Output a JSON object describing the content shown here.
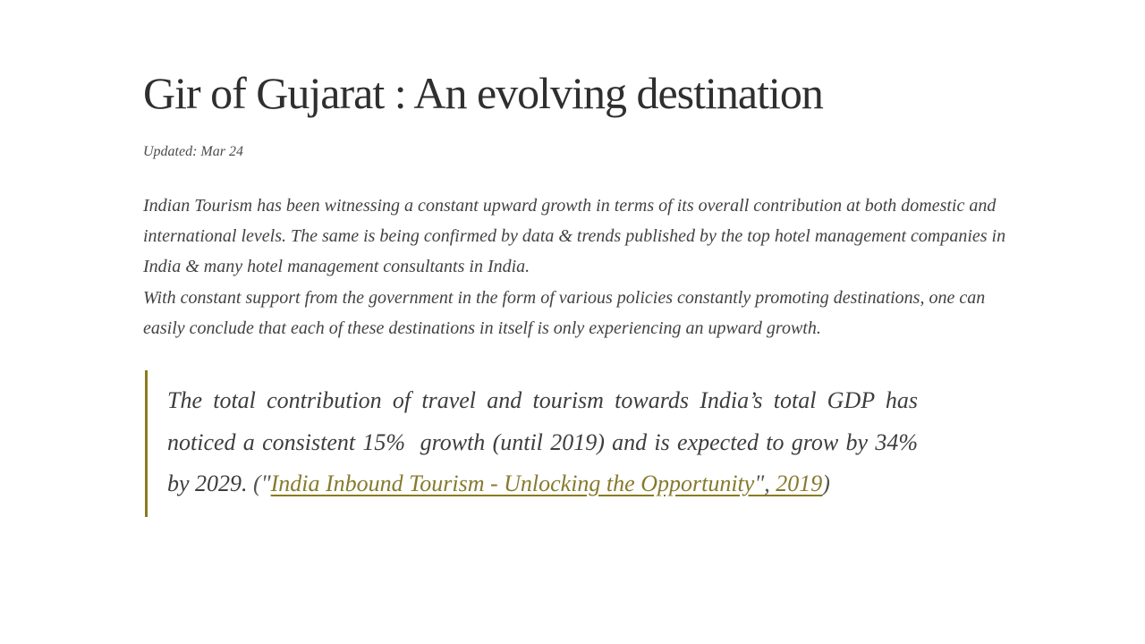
{
  "article": {
    "title": "Gir of Gujarat : An evolving destination",
    "updated": "Updated: Mar 24",
    "paragraphs": {
      "p1": "Indian Tourism has been witnessing a constant upward growth in terms of its overall contribution at both domestic and international levels. The same is being confirmed by data & trends published by the top hotel management companies in India & many hotel management consultants in India.",
      "p2": "With constant support from the government in the form of various policies constantly promoting destinations, one can easily conclude that each of these destinations in itself is only experiencing an upward growth."
    },
    "quote": {
      "body": "The total contribution of travel and tourism towards India’s total GDP has noticed a consistent 15%  growth (until 2019) and is expected to grow by 34% by 2029. ",
      "paren_open": "(\"",
      "link_main": "India Inbound Tourism - Unlocking the Opportunity",
      "link_quote": "\",",
      "link_year": " 2019",
      "paren_close": ")"
    },
    "colors": {
      "accent_olive": "#8a7a1f",
      "link_olive": "#867A2E",
      "title": "#2f2f2f",
      "body_text": "#424242"
    }
  }
}
